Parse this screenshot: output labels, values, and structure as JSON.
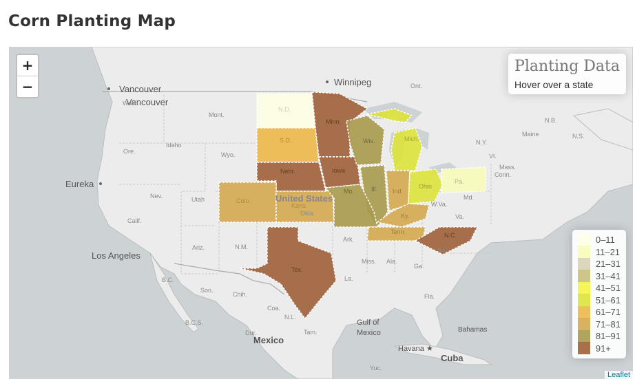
{
  "page": {
    "title": "Corn Planting Map"
  },
  "zoom": {
    "in_label": "+",
    "out_label": "−"
  },
  "info": {
    "heading": "Planting Data",
    "subtitle": "Hover over a state"
  },
  "legend": {
    "items": [
      {
        "label": "0–11",
        "color": "#FFFFE5"
      },
      {
        "label": "11–21",
        "color": "#F7FCB9"
      },
      {
        "label": "21–31",
        "color": "#D9D2B8"
      },
      {
        "label": "31–41",
        "color": "#C9C07A"
      },
      {
        "label": "41–51",
        "color": "#F4F446"
      },
      {
        "label": "51–61",
        "color": "#DDE33A"
      },
      {
        "label": "61–71",
        "color": "#EDB849"
      },
      {
        "label": "71–81",
        "color": "#D4AA50"
      },
      {
        "label": "81–91",
        "color": "#A89A4E"
      },
      {
        "label": "91+",
        "color": "#A0613A"
      }
    ]
  },
  "attribution": "Leaflet",
  "map": {
    "cities": [
      "Vancouver",
      "Winnipeg",
      "Eureka",
      "Los Angeles",
      "Mexico",
      "Havana",
      "Cuba",
      "Bahamas",
      "Gulf of",
      "Mexico",
      "United States",
      "Ont.",
      "Maine"
    ],
    "state_abbrevs": [
      "Wash.",
      "Mont.",
      "Ore.",
      "Idaho",
      "Wyo.",
      "Nev.",
      "Utah",
      "Calif.",
      "Ariz.",
      "N.M.",
      "Okla.",
      "Ark.",
      "Miss.",
      "Ala.",
      "Ga.",
      "Fla.",
      "La.",
      "S.C.",
      "Va.",
      "W.Va.",
      "Md.",
      "N.Y.",
      "Mass.",
      "Conn.",
      "Vt.",
      "N.B.",
      "N.S.",
      "B.C.",
      "Son.",
      "Chih.",
      "Coa.",
      "N.L.",
      "Tam.",
      "Dur.",
      "B.C.S.",
      "Yuc.",
      "Pa.",
      "Ohio",
      "Ind.",
      "Ill.",
      "Mo.",
      "Kans.",
      "Colo.",
      "Nebr.",
      "Iowa",
      "Wis.",
      "Mich.",
      "Minn.",
      "N.D.",
      "S.D.",
      "Tex.",
      "Tenn.",
      "Ky.",
      "N.C."
    ]
  },
  "states": [
    {
      "abbr": "N.D.",
      "value": 4,
      "color": "#FFFFE5"
    },
    {
      "abbr": "S.D.",
      "value": 65,
      "color": "#EDB849"
    },
    {
      "abbr": "Minn.",
      "value": 95,
      "color": "#A0613A"
    },
    {
      "abbr": "Nebr.",
      "value": 95,
      "color": "#A0613A"
    },
    {
      "abbr": "Iowa",
      "value": 95,
      "color": "#A0613A"
    },
    {
      "abbr": "Colo.",
      "value": 75,
      "color": "#D4AA50"
    },
    {
      "abbr": "Kans.",
      "value": 75,
      "color": "#D4AA50"
    },
    {
      "abbr": "Wis.",
      "value": 85,
      "color": "#A89A4E"
    },
    {
      "abbr": "Mich.",
      "value": 55,
      "color": "#DDE33A"
    },
    {
      "abbr": "Ill.",
      "value": 85,
      "color": "#A89A4E"
    },
    {
      "abbr": "Mo.",
      "value": 85,
      "color": "#A89A4E"
    },
    {
      "abbr": "Ind.",
      "value": 75,
      "color": "#D4AA50"
    },
    {
      "abbr": "Ohio",
      "value": 55,
      "color": "#DDE33A"
    },
    {
      "abbr": "Pa.",
      "value": 15,
      "color": "#F7FCB9"
    },
    {
      "abbr": "Ky.",
      "value": 75,
      "color": "#D4AA50"
    },
    {
      "abbr": "Tenn.",
      "value": 75,
      "color": "#D4AA50"
    },
    {
      "abbr": "N.C.",
      "value": 95,
      "color": "#A0613A"
    },
    {
      "abbr": "Tex.",
      "value": 95,
      "color": "#A0613A"
    }
  ]
}
